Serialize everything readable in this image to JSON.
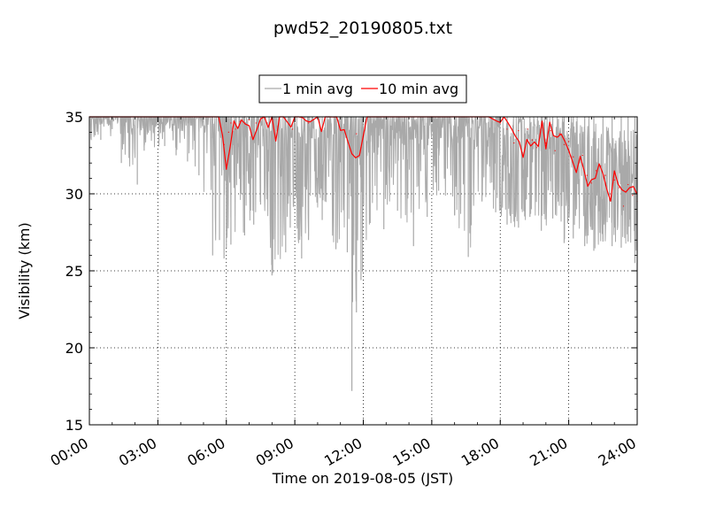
{
  "chart_data": {
    "type": "line",
    "title": "pwd52_20190805.txt",
    "xlabel": "Time on 2019-08-05 (JST)",
    "ylabel": "Visibility (km)",
    "xlim": [
      "00:00",
      "24:00"
    ],
    "ylim": [
      15,
      35
    ],
    "xticks": [
      "00:00",
      "03:00",
      "06:00",
      "09:00",
      "12:00",
      "15:00",
      "18:00",
      "21:00",
      "24:00"
    ],
    "yticks": [
      "15",
      "20",
      "25",
      "30",
      "35"
    ],
    "grid": true,
    "legend_position": "top-center",
    "series": [
      {
        "name": "1 min avg",
        "color": "#a9a9a9",
        "resolution": "1 min",
        "x_hours": [
          0.5,
          1.0,
          1.4,
          2.1,
          2.4,
          3.3,
          3.8,
          4.3,
          4.8,
          5.4,
          5.7,
          5.9,
          6.0,
          6.2,
          6.8,
          7.2,
          7.5,
          8.0,
          8.6,
          8.8,
          9.3,
          9.6,
          10.2,
          10.8,
          11.3,
          11.5,
          11.7,
          11.9,
          12.3,
          12.9,
          13.5,
          14.2,
          14.8,
          15.3,
          16.0,
          16.6,
          17.2,
          17.8,
          18.3,
          18.8,
          19.3,
          19.8,
          20.3,
          20.8,
          21.2,
          21.7,
          22.1,
          22.5,
          22.9,
          23.3,
          23.6,
          23.9
        ],
        "y_min_km": [
          33.5,
          34.2,
          32.0,
          30.6,
          32.8,
          33.1,
          32.5,
          32.1,
          31.2,
          26.0,
          27.0,
          25.8,
          26.5,
          26.7,
          27.3,
          28.0,
          29.3,
          24.7,
          26.2,
          27.8,
          25.8,
          27.0,
          28.3,
          26.4,
          26.2,
          17.2,
          22.3,
          24.4,
          28.1,
          27.7,
          28.9,
          26.6,
          28.5,
          30.2,
          28.6,
          25.9,
          29.5,
          28.8,
          28.0,
          27.8,
          28.5,
          27.6,
          28.4,
          26.8,
          27.1,
          26.6,
          26.3,
          26.9,
          26.6,
          26.5,
          26.9,
          25.5
        ]
      },
      {
        "name": "10 min avg",
        "color": "#ff0000",
        "resolution": "10 min",
        "x_hours": [
          0.0,
          5.7,
          5.9,
          6.0,
          6.1,
          6.2,
          6.3,
          6.4,
          6.6,
          6.8,
          7.0,
          7.3,
          7.6,
          8.0,
          8.5,
          8.9,
          9.0,
          9.3,
          9.6,
          10.0,
          10.5,
          11.0,
          11.3,
          11.5,
          11.7,
          11.9,
          12.0,
          13.0,
          15.0,
          17.5,
          18.0,
          18.3,
          18.6,
          18.8,
          19.0,
          19.2,
          19.4,
          19.6,
          19.8,
          20.0,
          20.2,
          20.4,
          20.6,
          20.8,
          21.0,
          21.2,
          21.4,
          21.6,
          21.8,
          22.0,
          22.2,
          22.4,
          22.6,
          22.8,
          23.0,
          23.2,
          23.4,
          23.6,
          23.8,
          24.0
        ],
        "y_km": [
          35.0,
          35.0,
          33.2,
          31.6,
          34.0,
          34.6,
          35.0,
          34.2,
          34.7,
          35.0,
          34.8,
          34.6,
          35.0,
          35.0,
          35.0,
          34.2,
          35.0,
          35.0,
          34.6,
          35.0,
          35.0,
          35.0,
          33.5,
          32.6,
          33.9,
          33.0,
          35.0,
          35.0,
          35.0,
          35.0,
          34.6,
          34.2,
          33.3,
          34.1,
          32.5,
          34.2,
          33.5,
          33.0,
          34.3,
          33.3,
          34.1,
          32.8,
          33.9,
          33.2,
          33.4,
          32.4,
          31.8,
          32.5,
          31.2,
          30.7,
          31.5,
          31.8,
          31.2,
          29.6,
          30.9,
          30.4,
          29.2,
          30.6,
          29.9,
          29.5
        ]
      }
    ]
  }
}
